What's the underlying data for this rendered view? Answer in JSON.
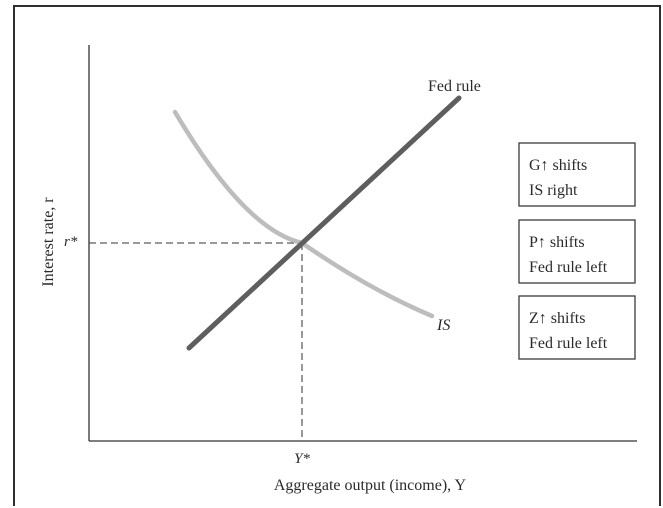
{
  "chart_data": {
    "type": "line",
    "xlabel": "Aggregate output (income), Y",
    "ylabel": "Interest rate, r",
    "x_tick": "Y*",
    "y_tick": "r*",
    "series": [
      {
        "name": "Fed rule",
        "color": "#5e5e5e",
        "shape": "upward-sloping line"
      },
      {
        "name": "IS",
        "color": "#bdbdbd",
        "shape": "downward-sloping curve"
      }
    ],
    "equilibrium": {
      "x_label": "Y*",
      "y_label": "r*",
      "guides": "dashed"
    }
  },
  "annotations": [
    {
      "line1": "G↑ shifts",
      "line2": "IS right"
    },
    {
      "line1": "P↑ shifts",
      "line2": "Fed rule left"
    },
    {
      "line1": "Z↑ shifts",
      "line2": "Fed rule left"
    }
  ]
}
